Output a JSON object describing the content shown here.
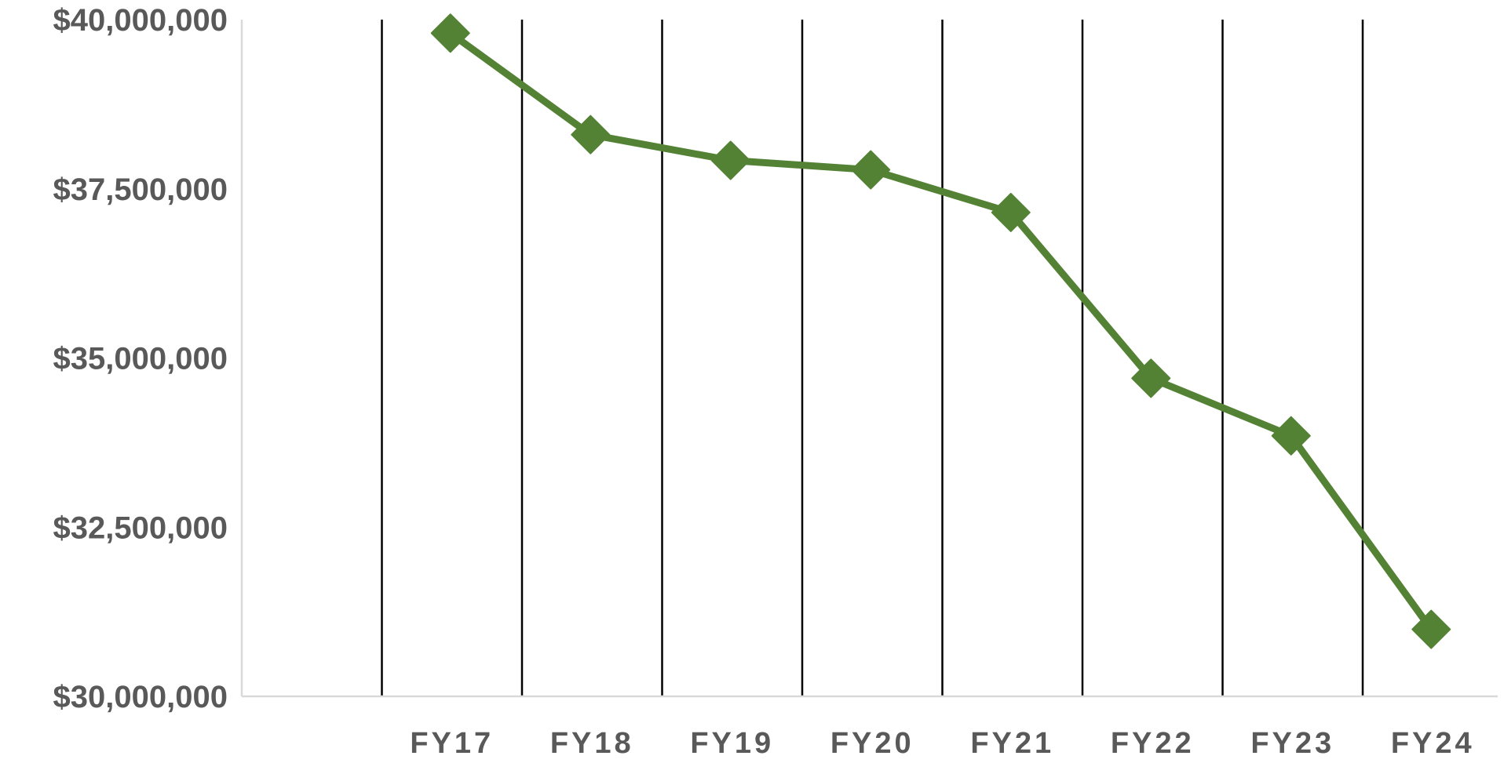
{
  "chart_data": {
    "type": "line",
    "title": "",
    "xlabel": "",
    "ylabel": "",
    "categories": [
      "FY17",
      "FY18",
      "FY19",
      "FY20",
      "FY21",
      "FY22",
      "FY23",
      "FY24"
    ],
    "category_suffix": {
      "FY24": "*"
    },
    "series": [
      {
        "values": [
          39800000,
          38300000,
          37920000,
          37780000,
          37150000,
          34700000,
          33850000,
          30990000
        ],
        "color": "#548235",
        "marker": "diamond"
      }
    ],
    "ylim": [
      30000000,
      40000000
    ],
    "yticks": [
      30000000,
      32500000,
      35000000,
      37500000,
      40000000
    ],
    "ytick_labels": [
      "$30,000,000",
      "$32,500,000",
      "$35,000,000",
      "$37,500,000",
      "$40,000,000"
    ],
    "grid": "vertical",
    "legend": "none",
    "colors": {
      "series": "#548235",
      "gridline": "#000000",
      "axis": "#d9d9d9",
      "tick_label": "#595959"
    }
  }
}
